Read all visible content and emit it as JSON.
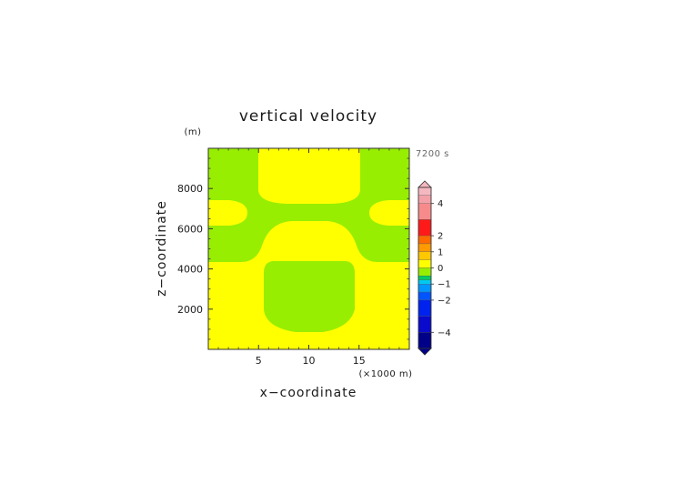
{
  "chart_data": {
    "type": "heatmap",
    "title": "vertical velocity",
    "xlabel": "x−coordinate",
    "ylabel": "z−coordinate",
    "x_unit": "(×1000 m)",
    "y_unit": "(m)",
    "time_label": "7200 s",
    "xlim": [
      0,
      20
    ],
    "ylim": [
      0,
      10000
    ],
    "x_ticks": [
      "5",
      "10",
      "15"
    ],
    "x_tick_values": [
      5,
      10,
      15
    ],
    "y_ticks": [
      "2000",
      "4000",
      "6000",
      "8000"
    ],
    "y_tick_values": [
      2000,
      4000,
      6000,
      8000
    ],
    "colorbar": {
      "min": -5,
      "max": 5,
      "tick_labels": [
        "4",
        "2",
        "1",
        "0",
        "−1",
        "−2",
        "−4"
      ],
      "tick_values": [
        4,
        2,
        1,
        0,
        -1,
        -2,
        -4
      ],
      "bands": [
        {
          "from": 4.5,
          "to": 5.0,
          "color": "#f6b8c0"
        },
        {
          "from": 4.0,
          "to": 4.5,
          "color": "#f4a0a8"
        },
        {
          "from": 3.0,
          "to": 4.0,
          "color": "#f78b8b"
        },
        {
          "from": 2.0,
          "to": 3.0,
          "color": "#ff1a1a"
        },
        {
          "from": 1.5,
          "to": 2.0,
          "color": "#ff6a00"
        },
        {
          "from": 1.0,
          "to": 1.5,
          "color": "#ff9a00"
        },
        {
          "from": 0.5,
          "to": 1.0,
          "color": "#ffc800"
        },
        {
          "from": 0.0,
          "to": 0.5,
          "color": "#ffff00"
        },
        {
          "from": -0.5,
          "to": 0.0,
          "color": "#98ee00"
        },
        {
          "from": -0.75,
          "to": -0.5,
          "color": "#00cc66"
        },
        {
          "from": -1.0,
          "to": -0.75,
          "color": "#00c8ee"
        },
        {
          "from": -1.5,
          "to": -1.0,
          "color": "#0096ff"
        },
        {
          "from": -2.0,
          "to": -1.5,
          "color": "#0055ff"
        },
        {
          "from": -3.0,
          "to": -2.0,
          "color": "#0022ee"
        },
        {
          "from": -4.0,
          "to": -3.0,
          "color": "#0a0acc"
        },
        {
          "from": -5.0,
          "to": -4.0,
          "color": "#000088"
        }
      ]
    },
    "field_colors": {
      "positive": "#ffff00",
      "negative": "#98ee00"
    }
  }
}
